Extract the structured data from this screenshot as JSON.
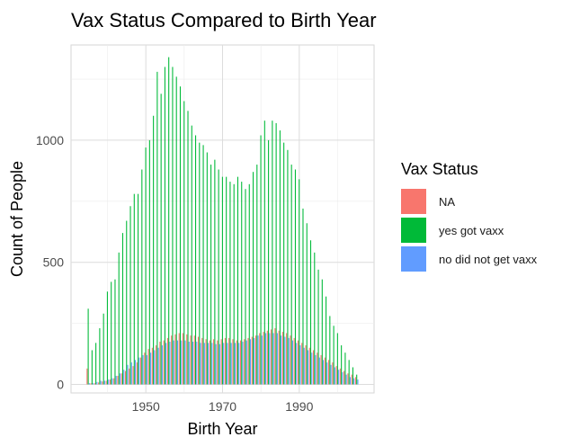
{
  "chart_data": {
    "type": "bar",
    "title": "Vax Status Compared to Birth Year",
    "xlabel": "Birth Year",
    "ylabel": "Count of People",
    "xlim": [
      1930.5,
      2009.5
    ],
    "ylim": [
      -35,
      1390
    ],
    "x_ticks": [
      1950,
      1970,
      1990
    ],
    "y_ticks": [
      0,
      500,
      1000
    ],
    "grid": true,
    "legend_position": "right",
    "legend_title": "Vax Status",
    "x": [
      1935,
      1936,
      1937,
      1938,
      1939,
      1940,
      1941,
      1942,
      1943,
      1944,
      1945,
      1946,
      1947,
      1948,
      1949,
      1950,
      1951,
      1952,
      1953,
      1954,
      1955,
      1956,
      1957,
      1958,
      1959,
      1960,
      1961,
      1962,
      1963,
      1964,
      1965,
      1966,
      1967,
      1968,
      1969,
      1970,
      1971,
      1972,
      1973,
      1974,
      1975,
      1976,
      1977,
      1978,
      1979,
      1980,
      1981,
      1982,
      1983,
      1984,
      1985,
      1986,
      1987,
      1988,
      1989,
      1990,
      1991,
      1992,
      1993,
      1994,
      1995,
      1996,
      1997,
      1998,
      1999,
      2000,
      2001,
      2002,
      2003,
      2004,
      2005
    ],
    "series": [
      {
        "name": "NA",
        "color": "#F8766D",
        "values": [
          65,
          5,
          5,
          8,
          12,
          15,
          20,
          25,
          35,
          45,
          55,
          65,
          75,
          90,
          110,
          130,
          145,
          150,
          160,
          175,
          180,
          190,
          200,
          205,
          210,
          210,
          205,
          200,
          200,
          195,
          190,
          185,
          180,
          185,
          180,
          185,
          190,
          190,
          185,
          180,
          180,
          185,
          190,
          195,
          200,
          210,
          215,
          220,
          225,
          230,
          220,
          215,
          210,
          200,
          190,
          180,
          170,
          160,
          150,
          140,
          130,
          120,
          110,
          100,
          90,
          75,
          65,
          55,
          45,
          40,
          30
        ]
      },
      {
        "name": "yes got vaxx",
        "color": "#00BA38",
        "values": [
          310,
          140,
          170,
          230,
          290,
          380,
          420,
          430,
          540,
          620,
          670,
          730,
          780,
          780,
          880,
          970,
          1000,
          1100,
          1280,
          1190,
          1300,
          1340,
          1300,
          1260,
          1220,
          1160,
          1120,
          1060,
          1020,
          990,
          980,
          950,
          900,
          920,
          880,
          850,
          850,
          830,
          820,
          850,
          830,
          800,
          820,
          870,
          900,
          1020,
          1080,
          1000,
          1080,
          1070,
          1040,
          990,
          960,
          900,
          880,
          840,
          720,
          660,
          590,
          540,
          470,
          430,
          360,
          280,
          240,
          210,
          160,
          130,
          100,
          70,
          40
        ]
      },
      {
        "name": "no did not get vaxx",
        "color": "#619CFF",
        "values": [
          5,
          5,
          10,
          15,
          15,
          20,
          25,
          35,
          45,
          60,
          80,
          90,
          100,
          110,
          120,
          120,
          130,
          140,
          150,
          160,
          170,
          175,
          180,
          180,
          180,
          180,
          175,
          175,
          175,
          170,
          170,
          170,
          170,
          165,
          165,
          170,
          170,
          170,
          170,
          170,
          175,
          180,
          185,
          190,
          200,
          200,
          210,
          210,
          210,
          210,
          200,
          195,
          190,
          180,
          170,
          160,
          150,
          140,
          130,
          120,
          110,
          100,
          90,
          80,
          70,
          60,
          50,
          40,
          30,
          25,
          20
        ]
      }
    ]
  }
}
